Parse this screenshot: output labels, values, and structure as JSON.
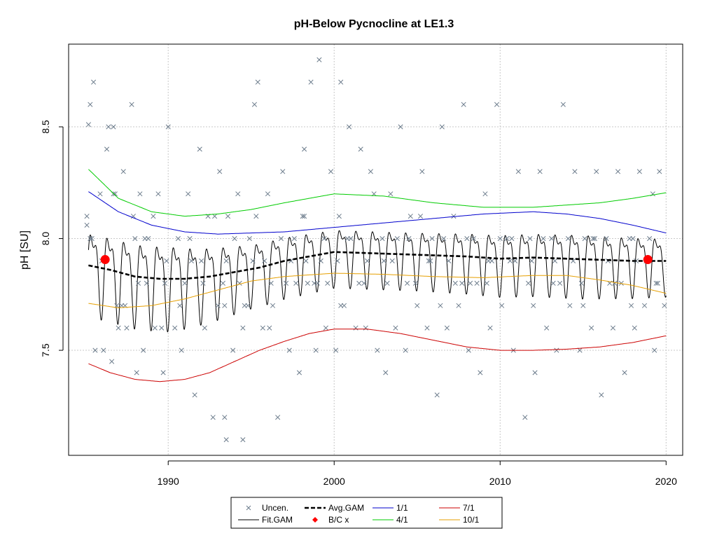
{
  "chart_data": {
    "type": "line",
    "title": "pH-Below Pycnocline at LE1.3",
    "xlabel": "",
    "ylabel": "pH [SU]",
    "xlim": [
      1984,
      2021
    ],
    "ylim": [
      7.03,
      8.87
    ],
    "x_ticks": [
      1990,
      2000,
      2010,
      2020
    ],
    "y_ticks": [
      7.5,
      8.0,
      8.5
    ],
    "grid": true,
    "legend_position": "bottom-center",
    "series": [
      {
        "name": "1/1",
        "color": "#0000CD",
        "x": [
          1985.2,
          1987,
          1989,
          1991,
          1993,
          1995,
          1997,
          2000,
          2003,
          2006,
          2009,
          2012,
          2014,
          2016,
          2018,
          2020
        ],
        "y": [
          8.21,
          8.12,
          8.06,
          8.03,
          8.02,
          8.025,
          8.03,
          8.05,
          8.07,
          8.09,
          8.11,
          8.12,
          8.11,
          8.09,
          8.06,
          8.025
        ]
      },
      {
        "name": "4/1",
        "color": "#00CC00",
        "x": [
          1985.2,
          1987,
          1989,
          1991,
          1993,
          1995,
          1997,
          2000,
          2003,
          2006,
          2009,
          2012,
          2014,
          2016,
          2018,
          2020
        ],
        "y": [
          8.31,
          8.18,
          8.12,
          8.1,
          8.11,
          8.13,
          8.16,
          8.2,
          8.19,
          8.16,
          8.14,
          8.14,
          8.15,
          8.16,
          8.18,
          8.205
        ]
      },
      {
        "name": "7/1",
        "color": "#CC0000",
        "x": [
          1985.2,
          1986.5,
          1988,
          1989.5,
          1991,
          1992.5,
          1994,
          1995.5,
          1997,
          1998.5,
          2000,
          2002,
          2004,
          2006,
          2008,
          2010,
          2012,
          2014,
          2016,
          2018,
          2020
        ],
        "y": [
          7.44,
          7.4,
          7.37,
          7.36,
          7.37,
          7.4,
          7.45,
          7.5,
          7.54,
          7.575,
          7.595,
          7.595,
          7.575,
          7.545,
          7.515,
          7.5,
          7.5,
          7.505,
          7.515,
          7.535,
          7.565
        ]
      },
      {
        "name": "10/1",
        "color": "#E69F00",
        "x": [
          1985.2,
          1987,
          1989,
          1991,
          1993,
          1995,
          1997,
          2000,
          2003,
          2006,
          2009,
          2012,
          2014,
          2016,
          2018,
          2020
        ],
        "y": [
          7.71,
          7.69,
          7.7,
          7.73,
          7.77,
          7.81,
          7.83,
          7.845,
          7.84,
          7.83,
          7.825,
          7.835,
          7.835,
          7.815,
          7.79,
          7.755
        ]
      },
      {
        "name": "Avg.GAM",
        "color": "#000000",
        "x": [
          1985.2,
          1986.5,
          1988,
          1989.5,
          1991,
          1992.5,
          1994,
          1995.5,
          1997,
          1998.5,
          2000,
          2002,
          2004,
          2006,
          2008,
          2010,
          2012,
          2014,
          2016,
          2018,
          2020
        ],
        "y": [
          7.88,
          7.86,
          7.83,
          7.82,
          7.82,
          7.83,
          7.85,
          7.87,
          7.9,
          7.92,
          7.94,
          7.935,
          7.93,
          7.925,
          7.92,
          7.91,
          7.915,
          7.91,
          7.905,
          7.9,
          7.9
        ]
      }
    ],
    "seasonal_amplitude": {
      "x": [
        1985.2,
        1990,
        1995,
        2000,
        2005,
        2010,
        2015,
        2020
      ],
      "y": [
        0.43,
        0.44,
        0.33,
        0.3,
        0.3,
        0.32,
        0.33,
        0.3
      ]
    },
    "bc_points": {
      "name": "B/C x",
      "color": "#FF0000",
      "x": [
        1986.2,
        2018.9
      ],
      "y": [
        7.906,
        7.906
      ]
    },
    "uncensored": {
      "name": "Uncen.",
      "color": "#6B7B8B",
      "x": [
        1985.1,
        1985.2,
        1985.3,
        1985.5,
        1985.6,
        1985.9,
        1986.1,
        1986.4,
        1986.6,
        1986.8,
        1987.0,
        1987.3,
        1987.5,
        1987.9,
        1988.1,
        1988.3,
        1988.5,
        1988.8,
        1989.2,
        1989.4,
        1989.7,
        1990.0,
        1990.4,
        1990.6,
        1990.8,
        1991.2,
        1991.6,
        1991.9,
        1992.2,
        1992.4,
        1992.7,
        1993.1,
        1993.4,
        1993.6,
        1993.9,
        1994.2,
        1994.5,
        1994.9,
        1995.1,
        1995.4,
        1995.7,
        1996.0,
        1996.3,
        1996.6,
        1996.9,
        1997.3,
        1997.6,
        1997.9,
        1998.1,
        1998.4,
        1998.6,
        1998.9,
        1999.2,
        1999.5,
        1999.8,
        2000.1,
        2000.3,
        2000.6,
        2000.9,
        2001.3,
        2001.6,
        2001.9,
        2002.2,
        2002.6,
        2002.9,
        2003.1,
        2003.4,
        2003.7,
        2004.0,
        2004.3,
        2004.6,
        2005.0,
        2005.3,
        2005.6,
        2005.9,
        2006.2,
        2006.5,
        2006.8,
        2007.2,
        2007.5,
        2007.8,
        2008.1,
        2008.4,
        2008.8,
        2009.1,
        2009.4,
        2009.8,
        2010.1,
        2010.4,
        2010.8,
        2011.1,
        2011.5,
        2011.8,
        2012.1,
        2012.4,
        2012.8,
        2013.1,
        2013.4,
        2013.8,
        2014.2,
        2014.5,
        2014.8,
        2015.1,
        2015.5,
        2015.8,
        2016.1,
        2016.4,
        2016.8,
        2017.1,
        2017.5,
        2017.8,
        2018.1,
        2018.4,
        2018.7,
        2019.0,
        2019.3,
        2019.6,
        2019.9,
        1986.2,
        1987.4,
        1988.6,
        1989.8,
        1991.0,
        1992.0,
        1993.3,
        1994.6,
        1995.8,
        1997.1,
        1998.3,
        1999.6,
        2000.8,
        2002.0,
        2003.2,
        2004.5,
        2005.7,
        2006.9,
        2008.2,
        2009.5,
        2010.7,
        2011.9,
        2013.2,
        2014.4,
        2015.6,
        2016.9,
        2018.2,
        2019.4,
        1985.4,
        1986.9,
        1988.2,
        1989.6,
        1991.4,
        1993.0,
        1994.3,
        1996.1,
        1997.7,
        1999.0,
        2000.4,
        2001.8,
        2003.5,
        2004.9,
        2006.4,
        2007.7,
        2009.2,
        2010.6,
        2012.0,
        2013.6,
        2015.0,
        2016.6,
        2017.9,
        2019.2,
        1985.3,
        1986.0,
        1986.7,
        1987.2,
        1988.0,
        1988.7,
        1989.1,
        1989.9,
        1990.7,
        1991.3,
        1992.1,
        1992.8,
        1993.5,
        1994.0,
        1994.8,
        1995.3,
        1996.2,
        1996.8,
        1997.4,
        1998.2,
        1998.8,
        1999.4,
        2000.2,
        2001.0,
        2001.5,
        2002.4,
        2003.0,
        2003.8,
        2004.4,
        2005.2,
        2005.8,
        2006.6,
        2007.3,
        2008.0,
        2008.6,
        2009.3,
        2010.0,
        2010.9,
        2011.7,
        2012.6,
        2013.3,
        2014.1,
        2014.9,
        2015.7,
        2016.5,
        2017.3,
        2018.0,
        2018.8,
        2019.5,
        1985.1,
        1986.3,
        1999.1,
        1995.2,
        1998.2,
        2000.4,
        1993.5,
        1994.5,
        1993.4,
        1986.7,
        1987.8
      ],
      "y": [
        8.06,
        8.51,
        8.6,
        8.7,
        7.5,
        8.2,
        7.5,
        8.5,
        7.45,
        8.2,
        7.6,
        8.3,
        7.6,
        8.1,
        7.4,
        8.2,
        7.5,
        8.0,
        7.6,
        8.2,
        7.4,
        8.5,
        7.6,
        8.0,
        7.5,
        8.2,
        7.3,
        8.4,
        7.6,
        8.1,
        7.2,
        8.3,
        7.7,
        8.1,
        7.5,
        8.2,
        7.6,
        8.0,
        7.9,
        8.7,
        7.6,
        8.2,
        7.7,
        7.2,
        8.3,
        7.5,
        8.0,
        7.4,
        8.1,
        7.8,
        8.7,
        7.5,
        7.9,
        7.6,
        8.3,
        7.5,
        8.1,
        7.7,
        8.5,
        7.6,
        8.4,
        7.6,
        8.3,
        7.5,
        8.0,
        7.4,
        8.2,
        7.6,
        8.5,
        7.5,
        8.1,
        7.7,
        8.3,
        7.6,
        8.0,
        7.3,
        8.5,
        7.6,
        8.1,
        7.7,
        8.6,
        7.5,
        8.0,
        7.4,
        8.2,
        7.6,
        8.6,
        7.7,
        8.0,
        7.5,
        8.3,
        7.2,
        8.0,
        7.4,
        8.3,
        7.6,
        8.0,
        7.5,
        8.6,
        7.7,
        8.3,
        7.5,
        8.0,
        7.6,
        8.3,
        7.3,
        8.0,
        7.6,
        8.3,
        7.4,
        8.0,
        7.6,
        8.3,
        7.7,
        8.0,
        7.5,
        8.3,
        7.7,
        7.9,
        7.7,
        8.0,
        7.8,
        7.8,
        7.9,
        7.8,
        7.7,
        7.9,
        7.8,
        7.9,
        7.8,
        8.0,
        7.9,
        7.8,
        8.0,
        7.9,
        7.9,
        7.8,
        7.9,
        8.0,
        7.9,
        7.8,
        7.9,
        8.0,
        7.8,
        7.9,
        7.8,
        8.0,
        7.7,
        7.8,
        7.6,
        7.9,
        7.7,
        7.8,
        7.6,
        7.8,
        7.8,
        7.7,
        7.8,
        7.9,
        7.8,
        7.7,
        7.8,
        7.8,
        7.9,
        7.7,
        7.8,
        7.7,
        7.8,
        7.7,
        8.2,
        8.0,
        7.9,
        8.2,
        7.7,
        8.0,
        7.8,
        8.1,
        7.9,
        7.7,
        8.0,
        7.8,
        8.1,
        7.9,
        8.0,
        7.7,
        8.1,
        7.8,
        8.0,
        7.9,
        8.1,
        7.8,
        8.0,
        7.9,
        8.0,
        7.8,
        8.2,
        7.9,
        8.0,
        7.8,
        8.1,
        7.9,
        8.0,
        7.8,
        8.0,
        7.8,
        7.9,
        8.0,
        7.9,
        7.8,
        8.0,
        7.9,
        8.0,
        7.8,
        8.0,
        7.9,
        7.8,
        8.0,
        7.9,
        7.8,
        8.1,
        8.4,
        8.8,
        8.6,
        8.4,
        8.7,
        7.1,
        7.1,
        7.2,
        8.5,
        8.6
      ]
    }
  },
  "legend": {
    "items": [
      {
        "label": "Uncen.",
        "symbol": "cross",
        "color": "#6B7B8B"
      },
      {
        "label": "Fit.GAM",
        "symbol": "line",
        "color": "#000000"
      },
      {
        "label": "Avg.GAM",
        "symbol": "dashed",
        "color": "#000000"
      },
      {
        "label": "B/C x",
        "symbol": "diamond",
        "color": "#FF0000"
      },
      {
        "label": "1/1",
        "symbol": "line",
        "color": "#0000CD"
      },
      {
        "label": "4/1",
        "symbol": "line",
        "color": "#00CC00"
      },
      {
        "label": "7/1",
        "symbol": "line",
        "color": "#CC0000"
      },
      {
        "label": "10/1",
        "symbol": "line",
        "color": "#E69F00"
      }
    ]
  }
}
